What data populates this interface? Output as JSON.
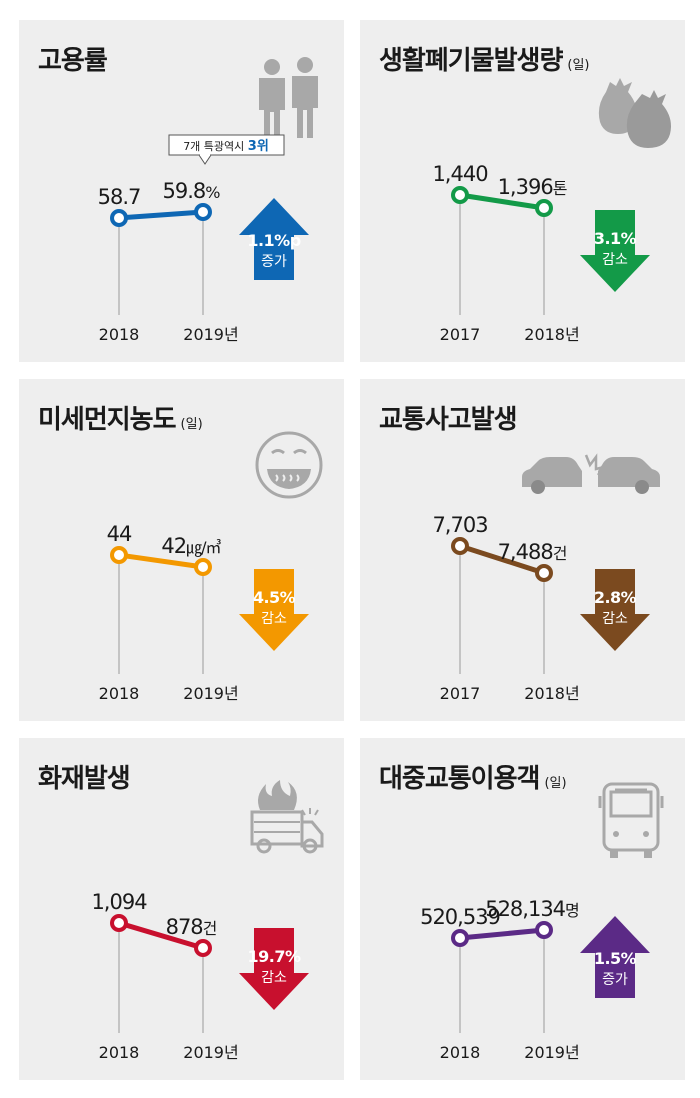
{
  "panels": [
    {
      "title": "고용률",
      "title_unit": "",
      "icon": "people-icon",
      "color": "#0e67b4",
      "years": [
        "2018",
        "2019년"
      ],
      "values": [
        58.7,
        59.8
      ],
      "labels": [
        "58.7",
        "59.8"
      ],
      "unit": "%",
      "change": "1.1%p",
      "change_text": "증가",
      "direction": "up",
      "note_prefix": "7개 특광역시 ",
      "note_rank": "3위"
    },
    {
      "title": "생활폐기물발생량",
      "title_unit": "(일)",
      "icon": "trash-bags-icon",
      "color": "#139a48",
      "years": [
        "2017",
        "2018년"
      ],
      "values": [
        1440,
        1396
      ],
      "labels": [
        "1,440",
        "1,396"
      ],
      "unit": "톤",
      "change": "3.1%",
      "change_text": "감소",
      "direction": "down"
    },
    {
      "title": "미세먼지농도",
      "title_unit": "(일)",
      "icon": "dust-mask-face-icon",
      "color": "#f39800",
      "years": [
        "2018",
        "2019년"
      ],
      "values": [
        44,
        42
      ],
      "labels": [
        "44",
        "42"
      ],
      "unit": "㎍/㎥",
      "change": "4.5%",
      "change_text": "감소",
      "direction": "down"
    },
    {
      "title": "교통사고발생",
      "title_unit": "",
      "icon": "car-crash-icon",
      "color": "#7b4a1f",
      "years": [
        "2017",
        "2018년"
      ],
      "values": [
        7703,
        7488
      ],
      "labels": [
        "7,703",
        "7,488"
      ],
      "unit": "건",
      "change": "2.8%",
      "change_text": "감소",
      "direction": "down"
    },
    {
      "title": "화재발생",
      "title_unit": "",
      "icon": "fire-truck-icon",
      "color": "#c8102e",
      "years": [
        "2018",
        "2019년"
      ],
      "values": [
        1094,
        878
      ],
      "labels": [
        "1,094",
        "878"
      ],
      "unit": "건",
      "change": "19.7%",
      "change_text": "감소",
      "direction": "down"
    },
    {
      "title": "대중교통이용객",
      "title_unit": "(일)",
      "icon": "bus-icon",
      "color": "#5b2a86",
      "years": [
        "2018",
        "2019년"
      ],
      "values": [
        520539,
        528134
      ],
      "labels": [
        "520,539",
        "528,134"
      ],
      "unit": "명",
      "change": "1.5%",
      "change_text": "증가",
      "direction": "up"
    }
  ],
  "chart_data": [
    {
      "type": "line",
      "title": "고용률",
      "x": [
        "2018",
        "2019년"
      ],
      "values": [
        58.7,
        59.8
      ],
      "unit": "%",
      "change": "1.1%p 증가"
    },
    {
      "type": "line",
      "title": "생활폐기물발생량 (일)",
      "x": [
        "2017",
        "2018년"
      ],
      "values": [
        1440,
        1396
      ],
      "unit": "톤",
      "change": "3.1% 감소"
    },
    {
      "type": "line",
      "title": "미세먼지농도 (일)",
      "x": [
        "2018",
        "2019년"
      ],
      "values": [
        44,
        42
      ],
      "unit": "㎍/㎥",
      "change": "4.5% 감소"
    },
    {
      "type": "line",
      "title": "교통사고발생",
      "x": [
        "2017",
        "2018년"
      ],
      "values": [
        7703,
        7488
      ],
      "unit": "건",
      "change": "2.8% 감소"
    },
    {
      "type": "line",
      "title": "화재발생",
      "x": [
        "2018",
        "2019년"
      ],
      "values": [
        1094,
        878
      ],
      "unit": "건",
      "change": "19.7% 감소"
    },
    {
      "type": "line",
      "title": "대중교통이용객 (일)",
      "x": [
        "2018",
        "2019년"
      ],
      "values": [
        520539,
        528134
      ],
      "unit": "명",
      "change": "1.5% 증가"
    }
  ]
}
